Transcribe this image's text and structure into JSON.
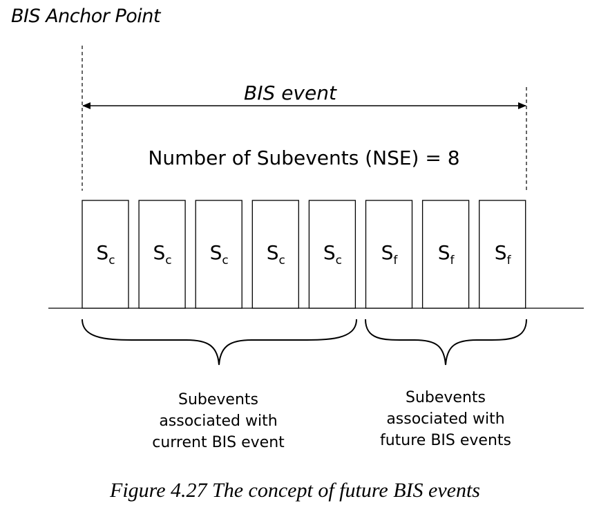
{
  "diagram": {
    "anchor_label": "BIS Anchor Point",
    "event_label": "BIS event",
    "nse_label": "Number of Subevents (NSE) = 8",
    "subevents": [
      {
        "main": "S",
        "sub": "c"
      },
      {
        "main": "S",
        "sub": "c"
      },
      {
        "main": "S",
        "sub": "c"
      },
      {
        "main": "S",
        "sub": "c"
      },
      {
        "main": "S",
        "sub": "c"
      },
      {
        "main": "S",
        "sub": "f"
      },
      {
        "main": "S",
        "sub": "f"
      },
      {
        "main": "S",
        "sub": "f"
      }
    ],
    "current_group": {
      "lines": [
        "Subevents",
        "associated with",
        "current BIS event"
      ]
    },
    "future_group": {
      "lines": [
        "Subevents",
        "associated with",
        "future BIS events"
      ]
    }
  },
  "caption": "Figure 4.27  The concept of future BIS events"
}
